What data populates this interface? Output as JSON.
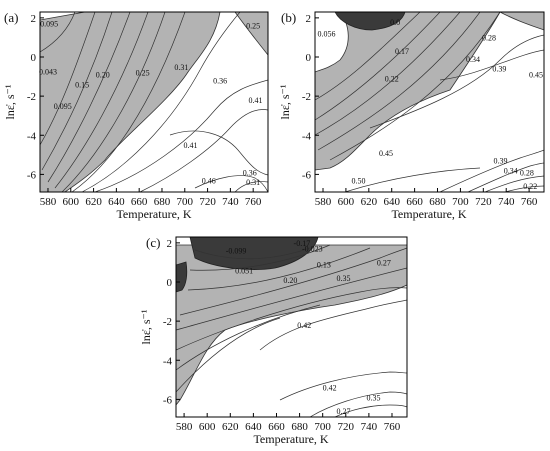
{
  "chart_data": [
    {
      "type": "contour",
      "panel_label": "(a)",
      "xlabel": "Temperature, K",
      "ylabel": "lnε̇, s⁻¹",
      "xlim": [
        573,
        773
      ],
      "ylim": [
        -6.9,
        2.3
      ],
      "xticks": [
        580,
        600,
        620,
        640,
        660,
        680,
        700,
        720,
        740,
        760
      ],
      "yticks": [
        2,
        0,
        -2,
        -4,
        -6
      ],
      "shading": "light gray marks regions where the contour value is below a threshold (instability region)",
      "contour_labels": [
        {
          "value": "0.095",
          "x": 581,
          "y": 1.7
        },
        {
          "value": "0.25",
          "x": 760,
          "y": 1.6
        },
        {
          "value": "0.043",
          "x": 580,
          "y": -0.75
        },
        {
          "value": "0.20",
          "x": 628,
          "y": -0.9
        },
        {
          "value": "0.25",
          "x": 663,
          "y": -0.8
        },
        {
          "value": "0.31",
          "x": 697,
          "y": -0.5
        },
        {
          "value": "0.15",
          "x": 610,
          "y": -1.4
        },
        {
          "value": "0.36",
          "x": 731,
          "y": -1.2
        },
        {
          "value": "0.095",
          "x": 593,
          "y": -2.5
        },
        {
          "value": "0.41",
          "x": 762,
          "y": -2.2
        },
        {
          "value": "0.41",
          "x": 705,
          "y": -4.5
        },
        {
          "value": "0.46",
          "x": 721,
          "y": -6.3
        },
        {
          "value": "0.36",
          "x": 757,
          "y": -5.9
        },
        {
          "value": "0.31",
          "x": 760,
          "y": -6.4
        }
      ]
    },
    {
      "type": "contour",
      "panel_label": "(b)",
      "xlabel": "Temperature, K",
      "ylabel": "lnε̇, s⁻¹",
      "xlim": [
        573,
        773
      ],
      "ylim": [
        -6.9,
        2.3
      ],
      "xticks": [
        580,
        600,
        620,
        640,
        660,
        680,
        700,
        720,
        740,
        760
      ],
      "yticks": [
        2,
        0,
        -2,
        -4,
        -6
      ],
      "contour_labels": [
        {
          "value": "0.056",
          "x": 583,
          "y": 1.2
        },
        {
          "value": "0.0",
          "x": 643,
          "y": 1.8
        },
        {
          "value": "0.28",
          "x": 725,
          "y": 1.0
        },
        {
          "value": "0.17",
          "x": 649,
          "y": 0.3
        },
        {
          "value": "0.34",
          "x": 711,
          "y": -0.1
        },
        {
          "value": "0.39",
          "x": 734,
          "y": -0.6
        },
        {
          "value": "0.22",
          "x": 640,
          "y": -1.1
        },
        {
          "value": "0.45",
          "x": 766,
          "y": -0.9
        },
        {
          "value": "0.45",
          "x": 635,
          "y": -4.9
        },
        {
          "value": "0.50",
          "x": 611,
          "y": -6.3
        },
        {
          "value": "0.39",
          "x": 735,
          "y": -5.3
        },
        {
          "value": "0.34",
          "x": 744,
          "y": -5.8
        },
        {
          "value": "0.28",
          "x": 758,
          "y": -5.9
        },
        {
          "value": "0.22",
          "x": 761,
          "y": -6.6
        }
      ]
    },
    {
      "type": "contour",
      "panel_label": "(c)",
      "xlabel": "Temperature, K",
      "ylabel": "lnε̇, s⁻¹",
      "xlim": [
        573,
        773
      ],
      "ylim": [
        -6.9,
        2.3
      ],
      "xticks": [
        580,
        600,
        620,
        640,
        660,
        680,
        700,
        720,
        740,
        760
      ],
      "yticks": [
        2,
        0,
        -2,
        -4,
        -6
      ],
      "contour_labels": [
        {
          "value": "-0.17",
          "x": 682,
          "y": 2.0
        },
        {
          "value": "-0.099",
          "x": 625,
          "y": 1.6
        },
        {
          "value": "-0.023",
          "x": 691,
          "y": 1.7
        },
        {
          "value": "0.13",
          "x": 701,
          "y": 0.9
        },
        {
          "value": "0.051",
          "x": 632,
          "y": 0.6
        },
        {
          "value": "0.27",
          "x": 753,
          "y": 1.0
        },
        {
          "value": "0.20",
          "x": 672,
          "y": 0.1
        },
        {
          "value": "0.35",
          "x": 718,
          "y": 0.2
        },
        {
          "value": "0.42",
          "x": 684,
          "y": -2.2
        },
        {
          "value": "0.42",
          "x": 706,
          "y": -5.4
        },
        {
          "value": "0.35",
          "x": 744,
          "y": -5.9
        },
        {
          "value": "0.27",
          "x": 718,
          "y": -6.6
        }
      ]
    }
  ]
}
